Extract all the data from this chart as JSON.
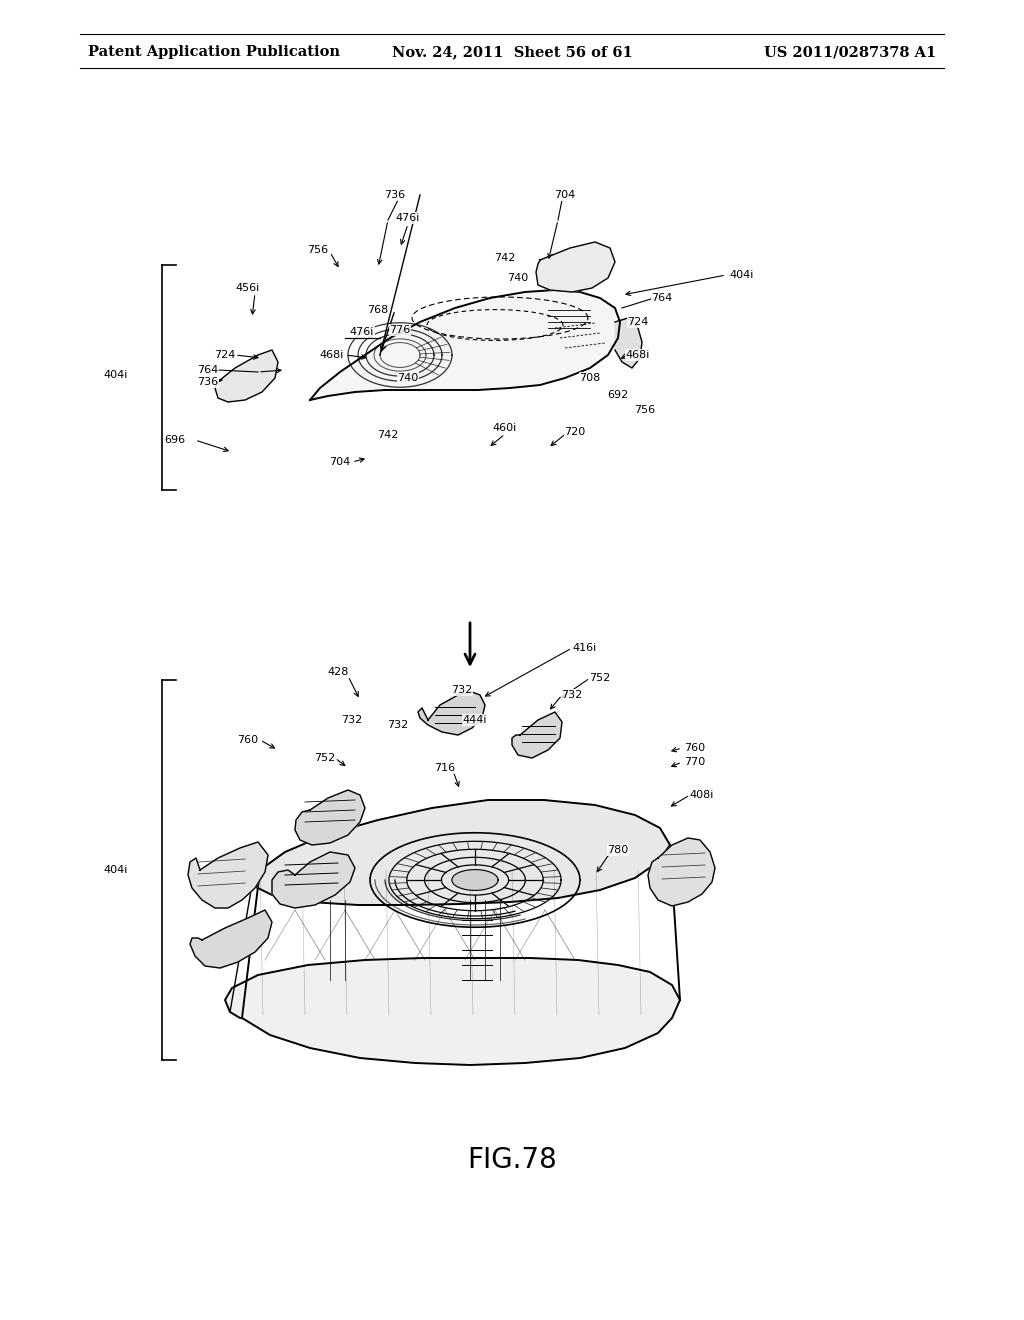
{
  "background_color": "#ffffff",
  "header_left": "Patent Application Publication",
  "header_center": "Nov. 24, 2011  Sheet 56 of 61",
  "header_right": "US 2011/0287378 A1",
  "figure_label": "FIG.78",
  "header_fontsize": 10.5,
  "fig_label_fontsize": 20,
  "label_fontsize": 8.0
}
